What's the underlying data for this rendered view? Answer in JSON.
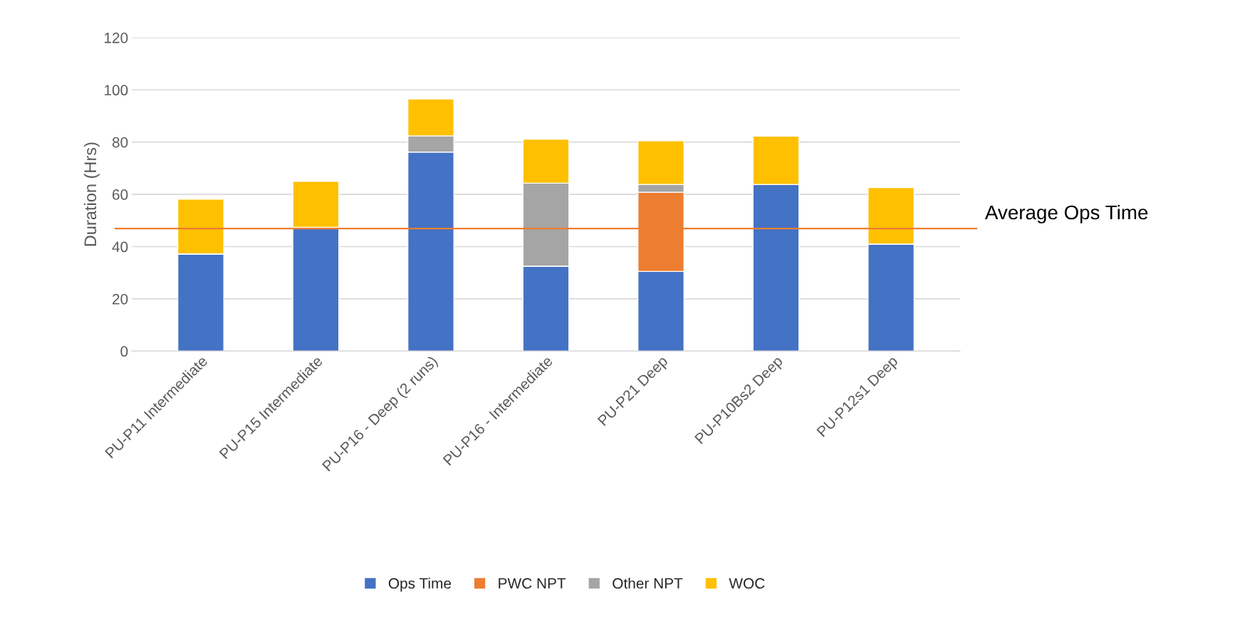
{
  "chart_data": {
    "type": "bar",
    "stacked": true,
    "ylabel": "Duration (Hrs)",
    "categories": [
      "PU-P11 Intermediate",
      "PU-P15 Intermediate",
      "PU-P16 - Deep (2 runs)",
      "PU-P16 - Intermediate",
      "PU-P21 Deep",
      "PU-P10Bs2 Deep",
      "PU-P12s1 Deep"
    ],
    "series": [
      {
        "name": "Ops Time",
        "color": "#4472c4",
        "values": [
          37.2,
          47.4,
          76.2,
          32.5,
          30.5,
          63.8,
          41.0
        ]
      },
      {
        "name": "PWC NPT",
        "color": "#ed7d31",
        "values": [
          0,
          0,
          0,
          0,
          30.3,
          0,
          0
        ]
      },
      {
        "name": "Other NPT",
        "color": "#a5a5a5",
        "values": [
          0,
          0,
          6.2,
          31.8,
          3.0,
          0,
          0
        ]
      },
      {
        "name": "WOC",
        "color": "#ffc000",
        "values": [
          21.0,
          17.6,
          14.1,
          16.8,
          16.7,
          18.5,
          21.6
        ]
      }
    ],
    "ylim": [
      0,
      120
    ],
    "yticks": [
      0,
      20,
      40,
      60,
      80,
      100,
      120
    ],
    "grid": "y",
    "legend": "bottom",
    "ref_lines": [
      {
        "axis": "y",
        "value": 46.9,
        "label": "Average Ops Time",
        "color": "#ed7d31"
      }
    ]
  }
}
